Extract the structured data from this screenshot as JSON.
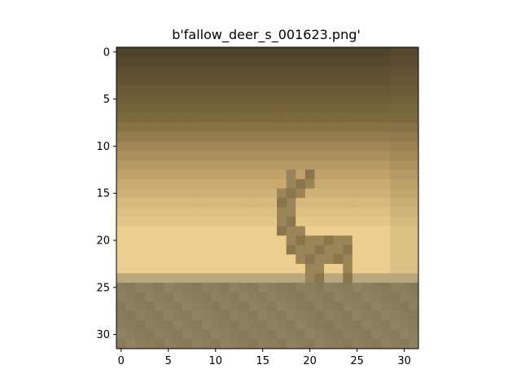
{
  "figure": {
    "title": "b'fallow_deer_s_001623.png'"
  },
  "image": {
    "grid_size": 32,
    "palette": {
      "sky_top": "#4f432b",
      "sky_upper_mid": "#7d693e",
      "sky_mid": "#c1a36a",
      "sky_glow": "#eccf8f",
      "ground_edge": "#bba67d",
      "ground": "#8f8461",
      "ground_dark": "#7a6f50",
      "deer": "#9a8558",
      "deer_dark": "#8a754d"
    }
  },
  "chart_data": {
    "type": "image",
    "title": "b'fallow_deer_s_001623.png'",
    "xlim": [
      -0.5,
      31.5
    ],
    "ylim": [
      31.5,
      -0.5
    ],
    "x_ticks": [
      0,
      5,
      10,
      15,
      20,
      25,
      30
    ],
    "y_ticks": [
      0,
      5,
      10,
      15,
      20,
      25,
      30
    ],
    "x_tick_labels": [
      "0",
      "5",
      "10",
      "15",
      "20",
      "25",
      "30"
    ],
    "y_tick_labels": [
      "0",
      "5",
      "10",
      "15",
      "20",
      "25",
      "30"
    ]
  }
}
